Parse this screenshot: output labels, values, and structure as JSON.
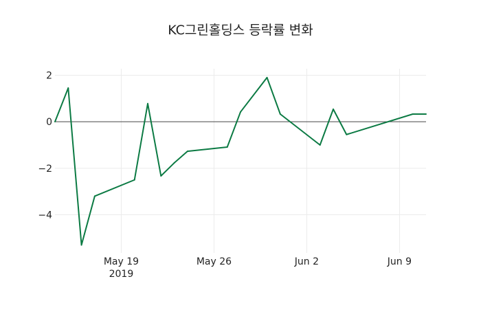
{
  "chart_data": {
    "type": "line",
    "title": "KC그린홀딩스 등락률 변화",
    "xlabel": "",
    "ylabel": "",
    "x": [
      "2019-05-14",
      "2019-05-15",
      "2019-05-16",
      "2019-05-17",
      "2019-05-20",
      "2019-05-21",
      "2019-05-22",
      "2019-05-23",
      "2019-05-24",
      "2019-05-27",
      "2019-05-28",
      "2019-05-30",
      "2019-05-31",
      "2019-06-03",
      "2019-06-04",
      "2019-06-05",
      "2019-06-10",
      "2019-06-11"
    ],
    "series": [
      {
        "name": "등락률",
        "color": "#0b7a43",
        "values": [
          0,
          1.45,
          -5.3,
          -3.2,
          -2.5,
          0.78,
          -2.33,
          -1.77,
          -1.27,
          -1.09,
          0.42,
          1.9,
          0.33,
          -1.0,
          0.54,
          -0.55,
          0.33,
          0.33
        ]
      }
    ],
    "xlim": [
      "2019-05-14",
      "2019-06-11"
    ],
    "ylim": [
      -5.64,
      2.28
    ],
    "xticks": [
      {
        "date": "2019-05-19",
        "label": "May 19",
        "sublabel": "2019"
      },
      {
        "date": "2019-05-26",
        "label": "May 26"
      },
      {
        "date": "2019-06-02",
        "label": "Jun 2"
      },
      {
        "date": "2019-06-09",
        "label": "Jun 9"
      }
    ],
    "yticks": [
      {
        "v": 2,
        "label": "2"
      },
      {
        "v": 0,
        "label": "0"
      },
      {
        "v": -2,
        "label": "−2"
      },
      {
        "v": -4,
        "label": "−4"
      }
    ],
    "grid": true,
    "legend": "none"
  }
}
